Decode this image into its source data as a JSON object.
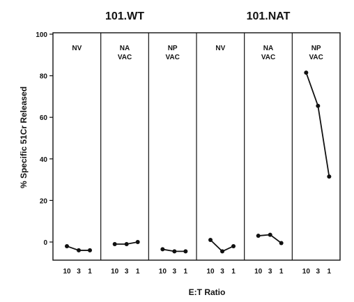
{
  "chart_data": {
    "type": "line",
    "ylabel": "% Specific 51Cr Released",
    "xlabel": "E:T Ratio",
    "ylim": [
      -10,
      100
    ],
    "yticks": [
      0,
      20,
      40,
      60,
      80,
      100
    ],
    "x": [
      "10",
      "3",
      "1"
    ],
    "groups": [
      "101.WT",
      "101.NAT"
    ],
    "panels": [
      {
        "group": "101.WT",
        "label": [
          "NV"
        ],
        "values": [
          -2,
          -4,
          -4
        ]
      },
      {
        "group": "101.WT",
        "label": [
          "NA",
          "VAC"
        ],
        "values": [
          -1,
          -1,
          0
        ]
      },
      {
        "group": "101.WT",
        "label": [
          "NP",
          "VAC"
        ],
        "values": [
          -3.5,
          -4.5,
          -4.5
        ]
      },
      {
        "group": "101.NAT",
        "label": [
          "NV"
        ],
        "values": [
          1,
          -4.5,
          -2
        ]
      },
      {
        "group": "101.NAT",
        "label": [
          "NA",
          "VAC"
        ],
        "values": [
          3,
          3.5,
          -0.5
        ]
      },
      {
        "group": "101.NAT",
        "label": [
          "NP",
          "VAC"
        ],
        "values": [
          81.5,
          65.5,
          31.5
        ]
      }
    ],
    "grid": false,
    "legend": "none",
    "colors": {
      "line": "#111111",
      "frame": "#111111",
      "background": "#ffffff"
    }
  }
}
